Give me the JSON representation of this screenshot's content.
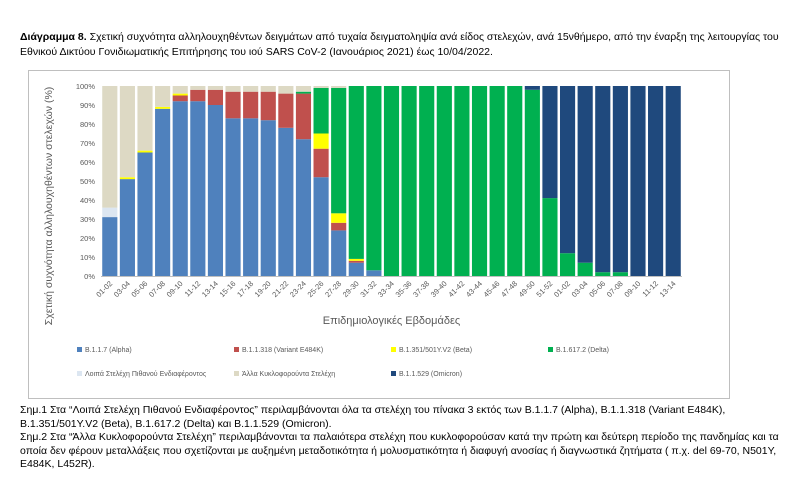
{
  "caption": {
    "bold": "Διάγραμμα 8.",
    "text": "Σχετική συχνότητα αλληλουχηθέντων δειγμάτων από τυχαία δειγματοληψία ανά είδος στελεχών, ανά 15νθήμερο, από την έναρξη της λειτουργίας του Εθνικού Δικτύου Γονιδιωματικής Επιτήρησης του ιού SARS CoV-2 (Ιανουάριος 2021) έως 10/04/2022."
  },
  "notes": {
    "note1": "Σημ.1 Στα “Λοιπά Στελέχη Πιθανού Ενδιαφέροντος” περιλαμβάνονται όλα τα στελέχη του πίνακα 3 εκτός των B.1.1.7 (Alpha), B.1.1.318 (Variant E484K), B.1.351/501Y.V2 (Beta), B.1.617.2 (Delta) και B.1.1.529 (Omicron).",
    "note2": "Σημ.2 Στα “Άλλα Κυκλοφορούντα Στελέχη” περιλαμβάνονται τα παλαιότερα στελέχη που κυκλοφορούσαν κατά την πρώτη και δεύτερη περίοδο της πανδημίας και τα οποία δεν φέρουν μεταλλάξεις που σχετίζονται με αυξημένη μεταδοτικότητα ή μολυσματικότητα ή διαφυγή ανοσίας ή διαγνωστικά ζητήματα ( π.χ. del 69-70, N501Y, E484K, L452R)."
  },
  "chart_data": {
    "type": "bar",
    "stacked": true,
    "xlabel": "Επιδημιολογικές Εβδομάδες",
    "ylabel": "Σχετική συχνότητα αλληλουχηθέντων στελεχών (%)",
    "ylim": [
      0,
      100
    ],
    "yticks": [
      "0%",
      "10%",
      "20%",
      "30%",
      "40%",
      "50%",
      "60%",
      "70%",
      "80%",
      "90%",
      "100%"
    ],
    "grid": false,
    "legend_position": "bottom",
    "categories": [
      "01-02",
      "03-04",
      "05-06",
      "07-08",
      "09-10",
      "11-12",
      "13-14",
      "15-16",
      "17-18",
      "19-20",
      "21-22",
      "23-24",
      "25-26",
      "27-28",
      "29-30",
      "31-32",
      "33-34",
      "35-36",
      "37-38",
      "39-40",
      "41-42",
      "43-44",
      "45-46",
      "47-48",
      "49-50",
      "51-52",
      "01-02",
      "03-04",
      "05-06",
      "07-08",
      "09-10",
      "11-12",
      "13-14"
    ],
    "series": [
      {
        "name": "B.1.1.7 (Alpha)",
        "color": "#4f81bd",
        "values": [
          31,
          51,
          65,
          88,
          92,
          92,
          90,
          83,
          83,
          82,
          78,
          72,
          52,
          24,
          7,
          3,
          0,
          0,
          0,
          0,
          0,
          0,
          0,
          0,
          0,
          0,
          0,
          0,
          0,
          0,
          0,
          0,
          0
        ]
      },
      {
        "name": "B.1.1.318 (Variant E484K)",
        "color": "#c0504d",
        "values": [
          0,
          0,
          0,
          0,
          3,
          6,
          8,
          14,
          14,
          15,
          18,
          24,
          15,
          4,
          1,
          0,
          0,
          0,
          0,
          0,
          0,
          0,
          0,
          0,
          0,
          0,
          0,
          0,
          0,
          0,
          0,
          0,
          0
        ]
      },
      {
        "name": "B.1.351/501Y.V2 (Beta)",
        "color": "#ffff00",
        "values": [
          0,
          1,
          1,
          1,
          1,
          0,
          0,
          0,
          0,
          0,
          0,
          0,
          8,
          5,
          1,
          0,
          0,
          0,
          0,
          0,
          0,
          0,
          0,
          0,
          0,
          0,
          0,
          0,
          0,
          0,
          0,
          0,
          0
        ]
      },
      {
        "name": "B.1.617.2 (Delta)",
        "color": "#00b050",
        "values": [
          0,
          0,
          0,
          0,
          0,
          0,
          0,
          0,
          0,
          0,
          0,
          1,
          24,
          66,
          91,
          97,
          100,
          100,
          100,
          100,
          100,
          100,
          100,
          100,
          98,
          41,
          12,
          7,
          2,
          2,
          0,
          0,
          0
        ]
      },
      {
        "name": "Λοιπά Στελέχη Πιθανού Ενδιαφέροντος",
        "color": "#dce6f1",
        "values": [
          5,
          0,
          0,
          0,
          0,
          0,
          0,
          0,
          0,
          0,
          0,
          0,
          0,
          0,
          0,
          0,
          0,
          0,
          0,
          0,
          0,
          0,
          0,
          0,
          0,
          0,
          0,
          0,
          0,
          0,
          0,
          0,
          0
        ]
      },
      {
        "name": "Άλλα Κυκλοφορούντα Στελέχη",
        "color": "#ddd9c4",
        "values": [
          64,
          48,
          34,
          11,
          4,
          2,
          2,
          3,
          3,
          3,
          4,
          3,
          1,
          1,
          0,
          0,
          0,
          0,
          0,
          0,
          0,
          0,
          0,
          0,
          0,
          0,
          0,
          0,
          0,
          0,
          0,
          0,
          0
        ]
      },
      {
        "name": "B.1.1.529 (Omicron)",
        "color": "#1f497d",
        "values": [
          0,
          0,
          0,
          0,
          0,
          0,
          0,
          0,
          0,
          0,
          0,
          0,
          0,
          0,
          0,
          0,
          0,
          0,
          0,
          0,
          0,
          0,
          0,
          0,
          2,
          59,
          88,
          93,
          98,
          98,
          100,
          100,
          100
        ]
      }
    ],
    "legend_order": [
      0,
      1,
      2,
      3,
      4,
      5,
      6
    ]
  }
}
